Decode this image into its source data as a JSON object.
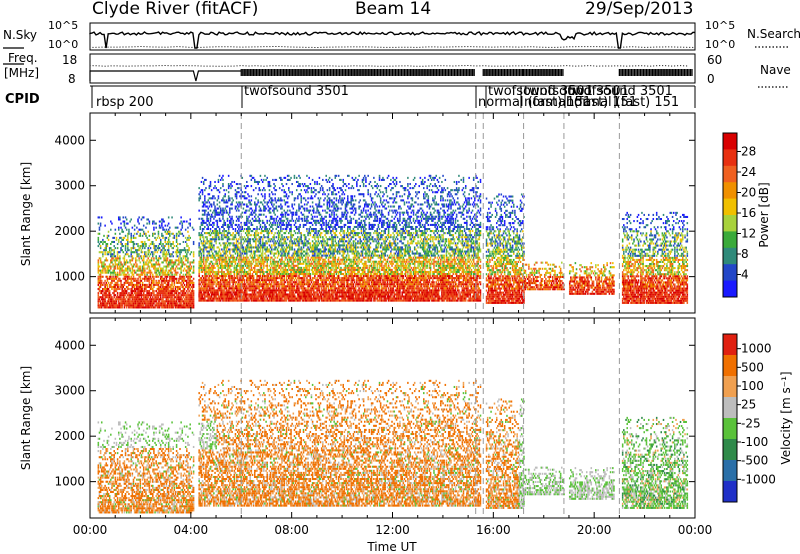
{
  "header": {
    "station": "Clyde River (fitACF)",
    "beam": "Beam 14",
    "date": "29/Sep/2013"
  },
  "noise_panel": {
    "left_label": "N.Sky",
    "right_label": "N.Search",
    "left_ticks": [
      "10^5",
      "10^0"
    ],
    "right_ticks": [
      "10^5",
      "10^0"
    ]
  },
  "freq_panel": {
    "left_label_1": "Freq.",
    "left_label_2": "[MHz]",
    "left_ticks": [
      "18",
      "8"
    ],
    "right_label": "Nave",
    "right_ticks": [
      "60",
      "0"
    ]
  },
  "cpid_panel": {
    "label": "CPID",
    "modes": [
      "rbsp 200",
      "twofsound 3501",
      "twofsound 3501",
      "normal (fast) 151",
      "twofsound 3501",
      "normal (fast) 151",
      "twofsound 3501",
      "normal (fast) 151"
    ]
  },
  "chart_data": [
    {
      "type": "heatmap",
      "panel": "power",
      "ylabel": "Slant Range [km]",
      "yticks": [
        "1000",
        "2000",
        "3000",
        "4000"
      ],
      "ylim": [
        200,
        4600
      ],
      "xlim_hours_ut": [
        0,
        24
      ],
      "colorbar": {
        "label": "Power [dB]",
        "ticks": [
          "4",
          "8",
          "12",
          "16",
          "20",
          "24",
          "28"
        ],
        "colors": [
          "#1a1aff",
          "#2347c8",
          "#2f8a7a",
          "#3aaa3a",
          "#a8d23c",
          "#f0c000",
          "#f09000",
          "#f06020",
          "#e83010",
          "#d80000"
        ]
      },
      "scatter_echo_bands": [
        {
          "t_start": 0.3,
          "t_end": 4.1,
          "range_km": [
            300,
            2300
          ]
        },
        {
          "t_start": 4.3,
          "t_end": 15.5,
          "range_km": [
            450,
            3200
          ]
        },
        {
          "t_start": 15.7,
          "t_end": 17.2,
          "range_km": [
            400,
            2800
          ]
        },
        {
          "t_start": 17.2,
          "t_end": 18.8,
          "range_km": [
            700,
            1300
          ]
        },
        {
          "t_start": 19.0,
          "t_end": 20.8,
          "range_km": [
            600,
            1300
          ]
        },
        {
          "t_start": 21.1,
          "t_end": 23.7,
          "range_km": [
            400,
            2400
          ]
        }
      ]
    },
    {
      "type": "heatmap",
      "panel": "velocity",
      "ylabel": "Slant Range [km]",
      "xlabel": "Time UT",
      "xticks": [
        "00:00",
        "04:00",
        "08:00",
        "12:00",
        "16:00",
        "20:00",
        "00:00"
      ],
      "yticks": [
        "1000",
        "2000",
        "3000",
        "4000"
      ],
      "ylim": [
        200,
        4600
      ],
      "xlim_hours_ut": [
        0,
        24
      ],
      "colorbar": {
        "label": "Velocity [m s⁻¹]",
        "ticks": [
          "1000",
          "500",
          "100",
          "25",
          "-25",
          "-100",
          "-500",
          "-1000"
        ],
        "colors": [
          "#2030c8",
          "#2a6fa8",
          "#2f8a4a",
          "#5ac23a",
          "#bdbdbd",
          "#f0a050",
          "#f07000",
          "#e02010"
        ]
      }
    }
  ]
}
